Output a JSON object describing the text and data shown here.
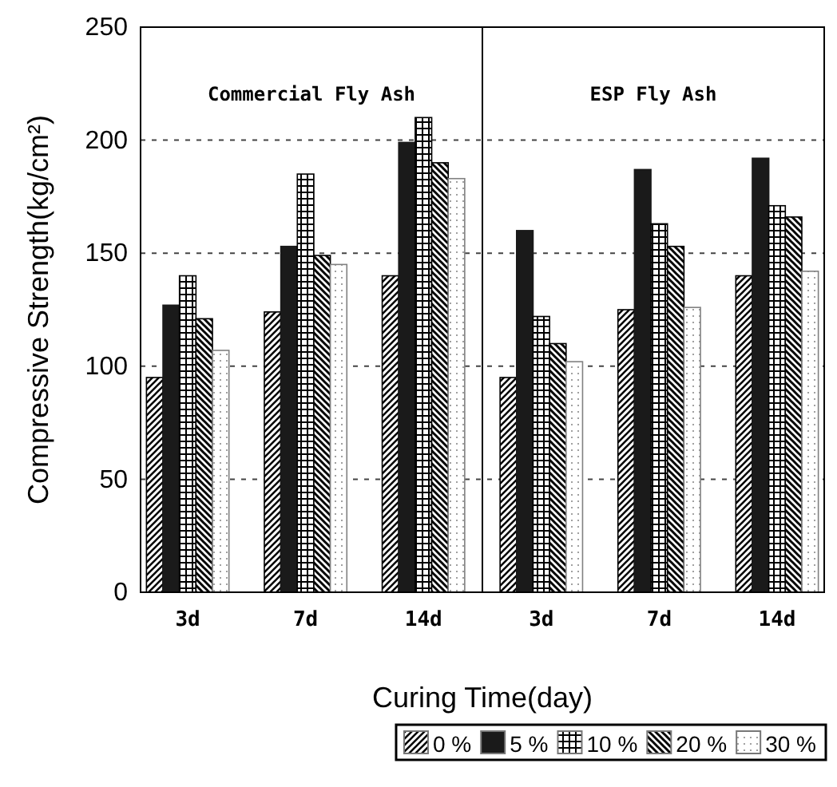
{
  "chart_data": {
    "type": "bar",
    "xlabel": "Curing Time(day)",
    "ylabel": "Compressive Strength(kg/cm²)",
    "categories": [
      "3d",
      "7d",
      "14d",
      "3d",
      "7d",
      "14d"
    ],
    "series": [
      {
        "name": "0 %",
        "color": "#000000",
        "values": [
          95,
          124,
          140,
          95,
          125,
          140
        ]
      },
      {
        "name": "5 %",
        "color": "#1a1a1a",
        "values": [
          127,
          153,
          199,
          160,
          187,
          192
        ]
      },
      {
        "name": "10 %",
        "color": "#000000",
        "values": [
          140,
          185,
          210,
          122,
          163,
          171
        ]
      },
      {
        "name": "20 %",
        "color": "#000000",
        "values": [
          121,
          149,
          190,
          110,
          153,
          166
        ]
      },
      {
        "name": "30 %",
        "color": "#808080",
        "values": [
          107,
          145,
          183,
          102,
          126,
          142
        ]
      }
    ],
    "annotations": [
      {
        "text": "Commercial Fly Ash"
      },
      {
        "text": "ESP Fly Ash"
      }
    ],
    "ylim": [
      0,
      250
    ],
    "yticks": [
      0,
      50,
      100,
      150,
      200,
      250
    ],
    "grid": "y",
    "legend": "bottom"
  }
}
